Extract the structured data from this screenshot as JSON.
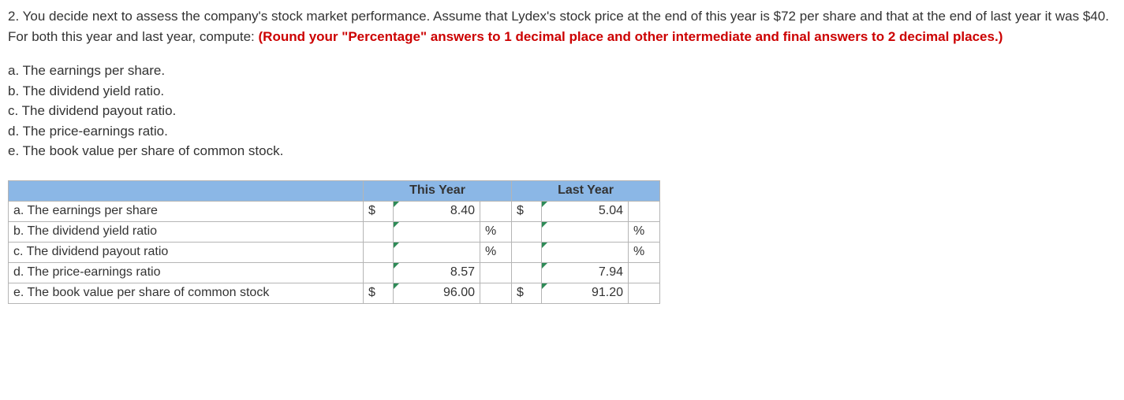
{
  "question": {
    "number": "2.",
    "body_before_red": "You decide next to assess the company's stock market performance. Assume that Lydex's stock price at the end of this year is $72 per share and that at the end of last year it was $40. For both this year and last year, compute: ",
    "red_text": "(Round your \"Percentage\" answers to 1 decimal place and other intermediate and final answers to 2 decimal places.)"
  },
  "sub_items": [
    "a. The earnings per share.",
    "b. The dividend yield ratio.",
    "c. The dividend payout ratio.",
    "d. The price-earnings ratio.",
    "e. The book value per share of common stock."
  ],
  "table": {
    "col_headers": {
      "this_year": "This Year",
      "last_year": "Last Year"
    },
    "rows": [
      {
        "label": "a. The earnings per share",
        "ty_sym": "$",
        "ty_val": "8.40",
        "ty_unit": "",
        "ly_sym": "$",
        "ly_val": "5.04",
        "ly_unit": ""
      },
      {
        "label": "b. The dividend yield ratio",
        "ty_sym": "",
        "ty_val": "",
        "ty_unit": "%",
        "ly_sym": "",
        "ly_val": "",
        "ly_unit": "%"
      },
      {
        "label": "c. The dividend payout ratio",
        "ty_sym": "",
        "ty_val": "",
        "ty_unit": "%",
        "ly_sym": "",
        "ly_val": "",
        "ly_unit": "%"
      },
      {
        "label": "d. The price-earnings ratio",
        "ty_sym": "",
        "ty_val": "8.57",
        "ty_unit": "",
        "ly_sym": "",
        "ly_val": "7.94",
        "ly_unit": ""
      },
      {
        "label": "e. The book value per share of common stock",
        "ty_sym": "$",
        "ty_val": "96.00",
        "ty_unit": "",
        "ly_sym": "$",
        "ly_val": "91.20",
        "ly_unit": ""
      }
    ]
  },
  "colors": {
    "header_bg": "#8bb7e6",
    "border": "#b5b5b5",
    "red": "#cc0000",
    "text": "#333333",
    "indicator": "#2e8b57"
  }
}
